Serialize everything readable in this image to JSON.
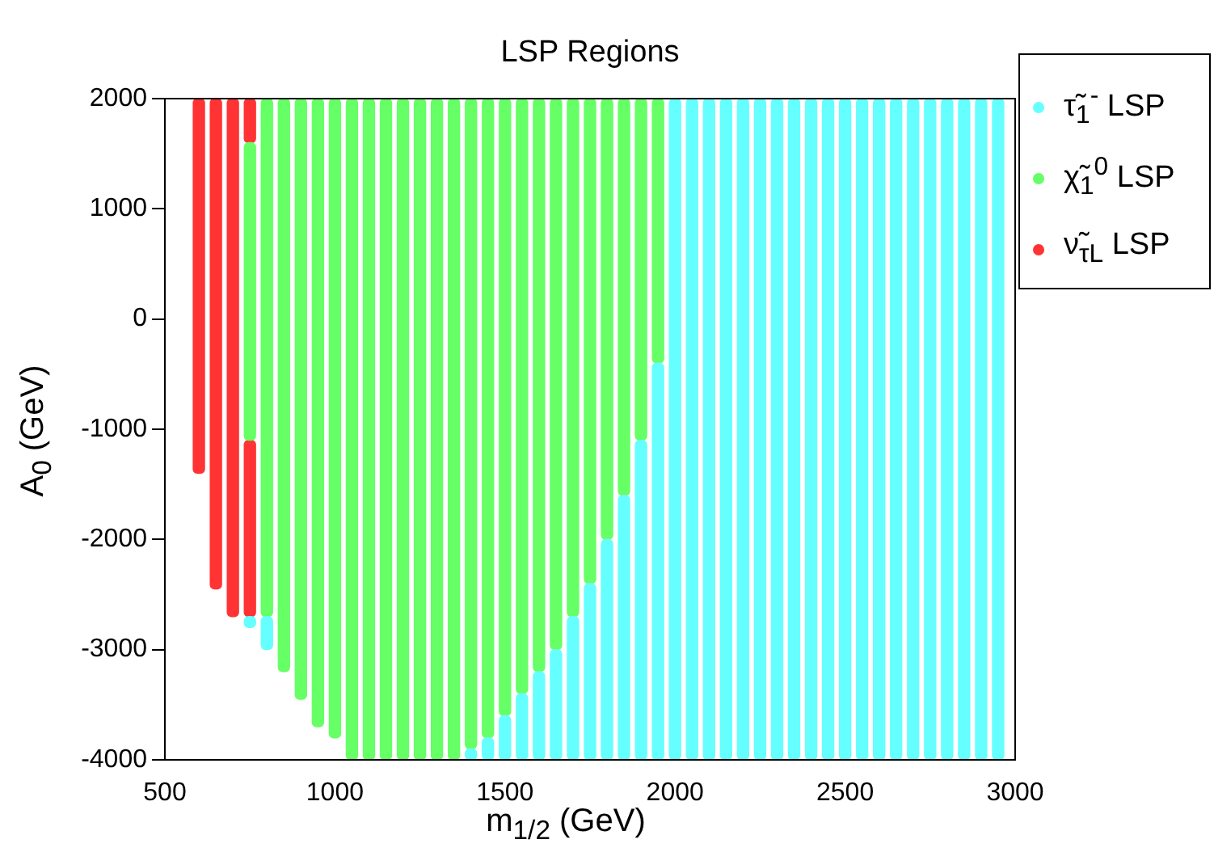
{
  "chart_data": {
    "type": "bar",
    "title": "LSP Regions",
    "xlabel": "m$_{1/2}$ (GeV)",
    "ylabel": "A$_{0}$ (GeV)",
    "xlim": [
      500,
      3000
    ],
    "xticks": [
      500,
      1000,
      1500,
      2000,
      2500,
      3000
    ],
    "ylim": [
      -4000,
      2000
    ],
    "yticks": [
      -4000,
      -3000,
      -2000,
      -1000,
      0,
      1000,
      2000
    ],
    "legend": "top right",
    "series": [
      {
        "name": "τ̃$_{1}$$^{-}$ LSP",
        "color": "#66ffff",
        "x": [
          750,
          800,
          1400,
          1450,
          1500,
          1550,
          1600,
          1650,
          1700,
          1750,
          1800,
          1850,
          1900,
          1950,
          2000,
          2050,
          2100,
          2150,
          2200,
          2250,
          2300,
          2350,
          2400,
          2450,
          2500,
          2550,
          2600,
          2650,
          2700,
          2750,
          2800,
          2850,
          2900,
          2950
        ],
        "base": [
          -2800,
          -3000,
          -4000,
          -4000,
          -4000,
          -4000,
          -4000,
          -4000,
          -4000,
          -4000,
          -4000,
          -4000,
          -4000,
          -4000,
          -4000,
          -4000,
          -4000,
          -4000,
          -4000,
          -4000,
          -4000,
          -4000,
          -4000,
          -4000,
          -4000,
          -4000,
          -4000,
          -4000,
          -4000,
          -4000,
          -4000,
          -4000,
          -4000,
          -4000
        ],
        "values": [
          100,
          300,
          100,
          200,
          400,
          600,
          800,
          1000,
          1300,
          1600,
          2000,
          2400,
          2900,
          3600,
          6000,
          6000,
          6000,
          6000,
          6000,
          6000,
          6000,
          6000,
          6000,
          6000,
          6000,
          6000,
          6000,
          6000,
          6000,
          6000,
          6000,
          6000,
          6000,
          6000
        ]
      },
      {
        "name": "χ̃$_{1}$$^{0}$ LSP",
        "color": "#66ff66",
        "x": [
          750,
          800,
          850,
          900,
          950,
          1000,
          1050,
          1100,
          1150,
          1200,
          1250,
          1300,
          1350,
          1400,
          1450,
          1500,
          1550,
          1600,
          1650,
          1700,
          1750,
          1800,
          1850,
          1900,
          1950
        ],
        "base": [
          -1100,
          -2700,
          -3200,
          -3450,
          -3700,
          -3800,
          -4000,
          -4000,
          -4000,
          -4000,
          -4000,
          -4000,
          -4000,
          -3900,
          -3800,
          -3600,
          -3400,
          -3200,
          -3000,
          -2700,
          -2400,
          -2000,
          -1600,
          -1100,
          -400
        ],
        "values": [
          2700,
          4700,
          5200,
          5450,
          5700,
          5800,
          6000,
          6000,
          6000,
          6000,
          6000,
          6000,
          6000,
          5900,
          5800,
          5600,
          5400,
          5200,
          5000,
          4700,
          4400,
          4000,
          3600,
          3100,
          2400
        ]
      },
      {
        "name": "ν̃$_{τL}$ LSP",
        "color": "#ff3333",
        "x": [
          600,
          650,
          700,
          750
        ],
        "base": [
          -1400,
          -2450,
          -2700,
          -2700
        ],
        "values": [
          3400,
          4450,
          4700,
          1600
        ]
      },
      {
        "color": "#ff3333",
        "x": [
          750
        ],
        "base": [
          1600
        ],
        "values": [
          400
        ]
      }
    ]
  }
}
